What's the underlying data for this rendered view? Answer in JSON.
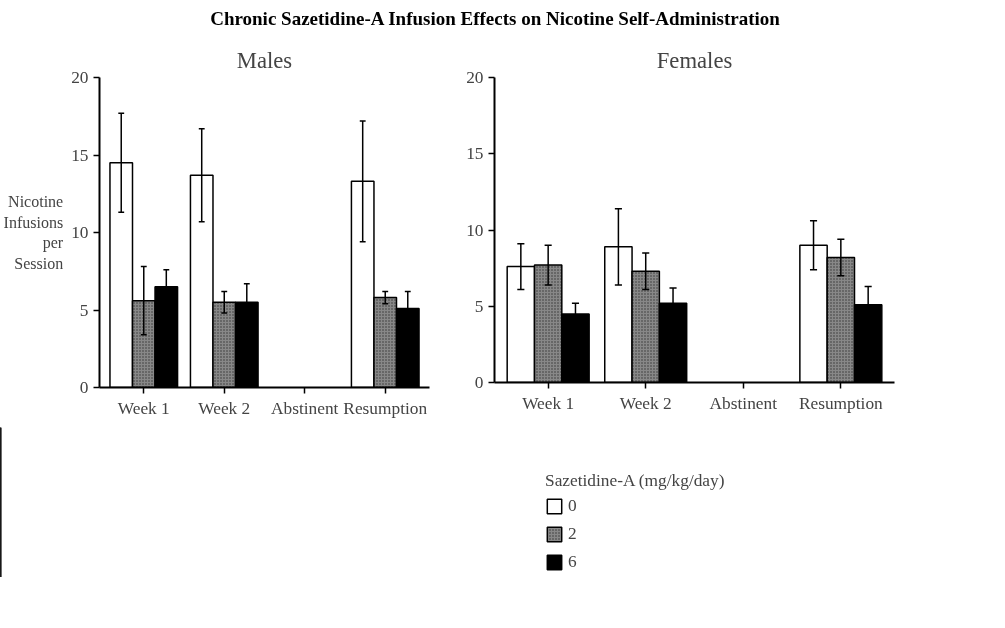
{
  "chart_data": [
    {
      "type": "bar",
      "title": "Chronic Sazetidine-A Infusion Effects on Nicotine Self-Administration",
      "subtitle": "Males",
      "ylabel": "Nicotine Infusions per Session",
      "categories": [
        "Week 1",
        "Week 2",
        "Abstinent",
        "Resumption"
      ],
      "ylim": [
        0,
        20
      ],
      "yticks": [
        0,
        5,
        10,
        15,
        20
      ],
      "grid": false,
      "legend": false,
      "series": [
        {
          "color": "#ffffff",
          "values": [
            14.5,
            13.7,
            null,
            13.3
          ],
          "errors": [
            3.2,
            3.0,
            null,
            3.9
          ]
        },
        {
          "color": "#888888",
          "values": [
            5.6,
            5.5,
            null,
            5.8
          ],
          "errors": [
            2.2,
            0.7,
            null,
            0.4
          ]
        },
        {
          "color": "#000000",
          "values": [
            6.5,
            5.5,
            null,
            5.1
          ],
          "errors": [
            1.1,
            1.2,
            null,
            1.1
          ]
        }
      ]
    },
    {
      "type": "bar",
      "subtitle": "Females",
      "legend_title": "Sazetidine-A (mg/kg/day)",
      "categories": [
        "Week 1",
        "Week 2",
        "Abstinent",
        "Resumption"
      ],
      "ylim": [
        0,
        20
      ],
      "yticks": [
        0,
        5,
        10,
        15,
        20
      ],
      "grid": false,
      "legend": "bottom left",
      "series": [
        {
          "name": "0",
          "color": "#ffffff",
          "values": [
            7.6,
            8.9,
            null,
            9.0
          ],
          "errors": [
            1.5,
            2.5,
            null,
            1.6
          ]
        },
        {
          "name": "2",
          "color": "#888888",
          "values": [
            7.7,
            7.3,
            null,
            8.2
          ],
          "errors": [
            1.3,
            1.2,
            null,
            1.2
          ]
        },
        {
          "name": "6",
          "color": "#000000",
          "values": [
            4.5,
            5.2,
            null,
            5.1
          ],
          "errors": [
            0.7,
            1.0,
            null,
            1.2
          ]
        }
      ]
    }
  ]
}
